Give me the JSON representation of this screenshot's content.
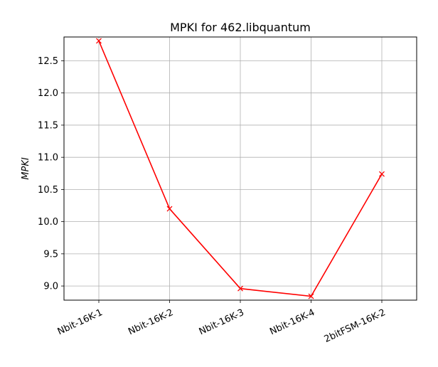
{
  "chart_data": {
    "type": "line",
    "title": "MPKI for 462.libquantum",
    "xlabel": "",
    "ylabel": "MPKI",
    "categories": [
      "Nbit-16K-1",
      "Nbit-16K-2",
      "Nbit-16K-3",
      "Nbit-16K-4",
      "2bitFSM-16K-2"
    ],
    "series": [
      {
        "values": [
          12.81,
          10.2,
          8.96,
          8.84,
          10.74
        ],
        "color": "#ff0000",
        "marker": "x"
      }
    ],
    "ylim": [
      8.78,
      12.87
    ],
    "yticks": [
      "9.0",
      "9.5",
      "10.0",
      "10.5",
      "11.0",
      "11.5",
      "12.0",
      "12.5"
    ],
    "grid": true,
    "xtick_rotation": 25
  }
}
